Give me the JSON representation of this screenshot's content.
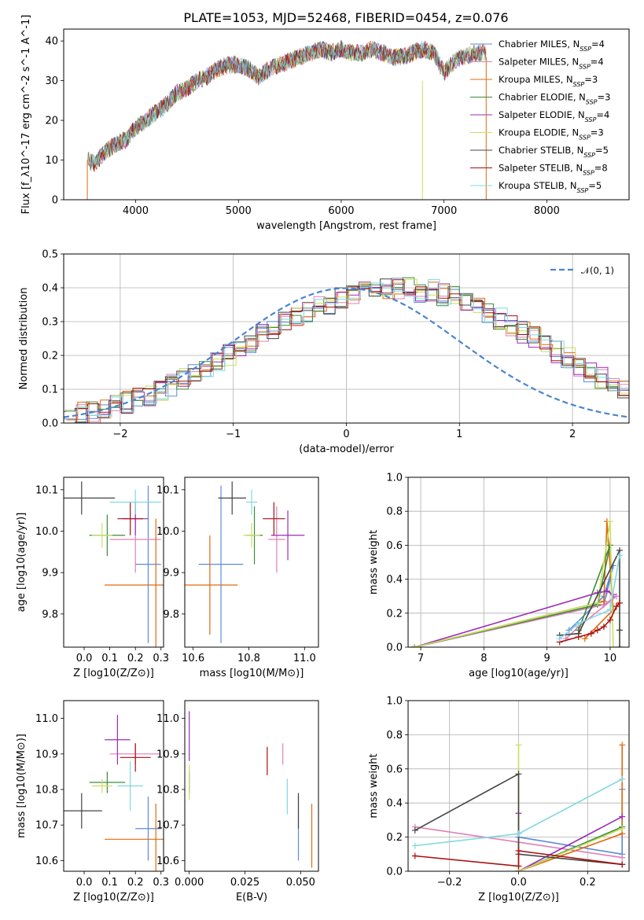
{
  "title": "PLATE=1053, MJD=52468, FIBERID=0454, z=0.076",
  "colors": {
    "Chabrier MILES": "#5b8bd9",
    "Salpeter MILES": "#e07fb8",
    "Kroupa MILES": "#e06a10",
    "Chabrier ELODIE": "#3f8a3a",
    "Salpeter ELODIE": "#9b2bb5",
    "Kroupa ELODIE": "#c8e060",
    "Chabrier STELIB": "#444444",
    "Salpeter STELIB": "#a81010",
    "Kroupa STELIB": "#80d8e0"
  },
  "chart_data": [
    {
      "type": "line",
      "title": "PLATE=1053, MJD=52468, FIBERID=0454, z=0.076",
      "xlabel": "wavelength [Angstrom, rest frame]",
      "ylabel": "Flux [f_λ10^-17 erg cm^-2 s^-1 A^-1]",
      "xlim": [
        3300,
        8800
      ],
      "ylim": [
        0,
        43
      ],
      "xticks": [
        4000,
        5000,
        6000,
        7000,
        8000
      ],
      "yticks": [
        0,
        10,
        20,
        30,
        40
      ],
      "grid": false,
      "legend": "top-right",
      "x": [
        3530,
        3600,
        3700,
        3800,
        3900,
        4000,
        4100,
        4200,
        4300,
        4400,
        4500,
        4600,
        4700,
        4800,
        4900,
        5000,
        5100,
        5200,
        5300,
        5400,
        5500,
        5600,
        5700,
        5800,
        5900,
        6000,
        6100,
        6200,
        6300,
        6400,
        6500,
        6600,
        6700,
        6800,
        6900,
        7000,
        7100,
        7200,
        7300,
        7400
      ],
      "continuum": [
        10,
        9,
        12,
        14,
        15,
        18,
        20,
        22,
        24,
        27,
        28,
        30,
        31,
        33,
        34,
        34,
        33,
        31,
        33,
        34,
        35,
        36,
        37,
        38,
        37,
        38,
        37,
        37,
        38,
        37,
        36,
        36,
        37,
        38,
        37,
        32,
        35,
        36,
        37,
        37
      ],
      "series": [
        {
          "name": "Chabrier MILES",
          "nssp": "4"
        },
        {
          "name": "Salpeter MILES",
          "nssp": "4"
        },
        {
          "name": "Kroupa MILES",
          "nssp": "3"
        },
        {
          "name": "Chabrier ELODIE",
          "nssp": "3"
        },
        {
          "name": "Salpeter ELODIE",
          "nssp": "4"
        },
        {
          "name": "Kroupa ELODIE",
          "nssp": "3"
        },
        {
          "name": "Chabrier STELIB",
          "nssp": "5"
        },
        {
          "name": "Salpeter STELIB",
          "nssp": "8"
        },
        {
          "name": "Kroupa STELIB",
          "nssp": "5"
        }
      ]
    },
    {
      "type": "bar",
      "xlabel": "(data-model)/error",
      "ylabel": "Normed distribution",
      "xlim": [
        -2.5,
        2.5
      ],
      "ylim": [
        0,
        0.5
      ],
      "xticks": [
        -2,
        -1,
        0,
        1,
        2
      ],
      "yticks": [
        0.0,
        0.1,
        0.2,
        0.3,
        0.4,
        0.5
      ],
      "grid": true,
      "legend": "top-right",
      "reference": "𝒩(0, 1)",
      "bin_width": 0.1,
      "bin_start": -2.5,
      "approx_values": [
        0.02,
        0.03,
        0.03,
        0.04,
        0.05,
        0.06,
        0.07,
        0.08,
        0.09,
        0.11,
        0.13,
        0.15,
        0.16,
        0.18,
        0.2,
        0.22,
        0.24,
        0.26,
        0.28,
        0.3,
        0.31,
        0.33,
        0.34,
        0.35,
        0.37,
        0.38,
        0.39,
        0.39,
        0.4,
        0.4,
        0.4,
        0.39,
        0.39,
        0.38,
        0.37,
        0.35,
        0.34,
        0.33,
        0.31,
        0.29,
        0.27,
        0.25,
        0.23,
        0.21,
        0.19,
        0.17,
        0.15,
        0.13,
        0.11,
        0.1
      ]
    },
    {
      "type": "scatter",
      "xlabel": "Z [log10(Z/Z⊙)]",
      "ylabel": "age [log10(age/yr)]",
      "xlim": [
        -0.08,
        0.31
      ],
      "ylim": [
        9.72,
        10.13
      ],
      "xticks": [
        0.0,
        0.1,
        0.2,
        0.3
      ],
      "yticks": [
        9.8,
        9.9,
        10.0,
        10.1
      ],
      "points": [
        {
          "name": "Chabrier MILES",
          "x": 0.25,
          "y": 9.92,
          "xerr": 0.05,
          "yerr": 0.19
        },
        {
          "name": "Salpeter MILES",
          "x": 0.2,
          "y": 9.98,
          "xerr": 0.1,
          "yerr": 0.08
        },
        {
          "name": "Kroupa MILES",
          "x": 0.28,
          "y": 9.87,
          "xerr": 0.2,
          "yerr": 0.16
        },
        {
          "name": "Chabrier ELODIE",
          "x": 0.09,
          "y": 9.99,
          "xerr": 0.07,
          "yerr": 0.05
        },
        {
          "name": "Salpeter ELODIE",
          "x": 0.2,
          "y": 10.03,
          "xerr": 0.05,
          "yerr": 0.04
        },
        {
          "name": "Kroupa ELODIE",
          "x": 0.07,
          "y": 9.99,
          "xerr": 0.04,
          "yerr": 0.03
        },
        {
          "name": "Chabrier STELIB",
          "x": -0.01,
          "y": 10.08,
          "xerr": 0.13,
          "yerr": 0.04
        },
        {
          "name": "Salpeter STELIB",
          "x": 0.18,
          "y": 10.03,
          "xerr": 0.05,
          "yerr": 0.04
        },
        {
          "name": "Kroupa STELIB",
          "x": 0.2,
          "y": 10.07,
          "xerr": 0.1,
          "yerr": 0.03
        }
      ]
    },
    {
      "type": "scatter",
      "xlabel": "mass [log10(M/M⊙)]",
      "ylabel": "",
      "xlim": [
        10.57,
        11.05
      ],
      "ylim": [
        9.72,
        10.13
      ],
      "xticks": [
        10.6,
        10.8,
        11.0
      ],
      "yticks": [
        9.8,
        9.9,
        10.0,
        10.1
      ],
      "points": [
        {
          "name": "Chabrier MILES",
          "x": 10.7,
          "y": 9.92,
          "xerr": 0.08,
          "yerr": 0.19
        },
        {
          "name": "Salpeter MILES",
          "x": 10.9,
          "y": 9.98,
          "xerr": 0.03,
          "yerr": 0.08
        },
        {
          "name": "Kroupa MILES",
          "x": 10.66,
          "y": 9.87,
          "xerr": 0.1,
          "yerr": 0.12
        },
        {
          "name": "Chabrier ELODIE",
          "x": 10.82,
          "y": 9.99,
          "xerr": 0.03,
          "yerr": 0.07
        },
        {
          "name": "Salpeter ELODIE",
          "x": 10.94,
          "y": 9.99,
          "xerr": 0.06,
          "yerr": 0.06
        },
        {
          "name": "Kroupa ELODIE",
          "x": 10.81,
          "y": 9.99,
          "xerr": 0.03,
          "yerr": 0.03
        },
        {
          "name": "Chabrier STELIB",
          "x": 10.74,
          "y": 10.08,
          "xerr": 0.05,
          "yerr": 0.04
        },
        {
          "name": "Salpeter STELIB",
          "x": 10.89,
          "y": 10.03,
          "xerr": 0.04,
          "yerr": 0.04
        },
        {
          "name": "Kroupa STELIB",
          "x": 10.81,
          "y": 10.07,
          "xerr": 0.02,
          "yerr": 0.03
        }
      ]
    },
    {
      "type": "line",
      "xlabel": "age [log10(age/yr)]",
      "ylabel": "mass weight",
      "xlim": [
        6.8,
        10.3
      ],
      "ylim": [
        0,
        1.0
      ],
      "xticks": [
        7,
        8,
        9,
        10
      ],
      "yticks": [
        0.0,
        0.2,
        0.4,
        0.6,
        0.8,
        1.0
      ],
      "grid": true,
      "series": [
        {
          "name": "Chabrier MILES",
          "x": [
            6.9,
            9.9,
            10.05,
            9.9,
            9.35
          ],
          "y": [
            0.0,
            0.25,
            0.48,
            0.3,
            0.1
          ]
        },
        {
          "name": "Salpeter MILES",
          "x": [
            6.9,
            9.9,
            10.1,
            9.5,
            9.3
          ],
          "y": [
            0.0,
            0.25,
            0.3,
            0.12,
            0.05
          ]
        },
        {
          "name": "Kroupa MILES",
          "x": [
            6.9,
            9.9,
            9.95,
            10.05,
            9.6
          ],
          "y": [
            0.0,
            0.27,
            0.74,
            0.22,
            0.05
          ]
        },
        {
          "name": "Chabrier ELODIE",
          "x": [
            6.9,
            9.8,
            10.0,
            9.5
          ],
          "y": [
            0.0,
            0.25,
            0.6,
            0.1
          ]
        },
        {
          "name": "Salpeter ELODIE",
          "x": [
            6.9,
            9.8,
            9.95,
            10.05
          ],
          "y": [
            0.0,
            0.32,
            0.33,
            0.31
          ]
        },
        {
          "name": "Kroupa ELODIE",
          "x": [
            6.9,
            9.8,
            10.0,
            10.05
          ],
          "y": [
            0.0,
            0.26,
            0.74,
            0.0
          ]
        },
        {
          "name": "Chabrier STELIB",
          "x": [
            9.2,
            9.5,
            10.15,
            10.15,
            10.15
          ],
          "y": [
            0.07,
            0.08,
            0.57,
            0.1,
            0.0
          ]
        },
        {
          "name": "Salpeter STELIB",
          "x": [
            9.2,
            9.5,
            9.7,
            9.8,
            9.9,
            10.0,
            10.1,
            10.15
          ],
          "y": [
            0.03,
            0.06,
            0.08,
            0.1,
            0.12,
            0.16,
            0.24,
            0.26
          ]
        },
        {
          "name": "Kroupa STELIB",
          "x": [
            9.2,
            9.5,
            10.0,
            10.15
          ],
          "y": [
            0.05,
            0.14,
            0.22,
            0.54
          ]
        }
      ]
    },
    {
      "type": "scatter",
      "xlabel": "Z [log10(Z/Z⊙)]",
      "ylabel": "mass [log10(M/M⊙)]",
      "xlim": [
        -0.08,
        0.31
      ],
      "ylim": [
        10.57,
        11.05
      ],
      "xticks": [
        0.0,
        0.1,
        0.2,
        0.3
      ],
      "yticks": [
        10.6,
        10.7,
        10.8,
        10.9,
        11.0
      ],
      "points": [
        {
          "name": "Chabrier MILES",
          "x": 0.25,
          "y": 10.69,
          "xerr": 0.05,
          "yerr": 0.09
        },
        {
          "name": "Salpeter MILES",
          "x": 0.2,
          "y": 10.9,
          "xerr": 0.1,
          "yerr": 0.03
        },
        {
          "name": "Kroupa MILES",
          "x": 0.28,
          "y": 10.66,
          "xerr": 0.2,
          "yerr": 0.1
        },
        {
          "name": "Chabrier ELODIE",
          "x": 0.09,
          "y": 10.82,
          "xerr": 0.07,
          "yerr": 0.03
        },
        {
          "name": "Salpeter ELODIE",
          "x": 0.13,
          "y": 10.94,
          "xerr": 0.05,
          "yerr": 0.07
        },
        {
          "name": "Kroupa ELODIE",
          "x": 0.07,
          "y": 10.81,
          "xerr": 0.04,
          "yerr": 0.02
        },
        {
          "name": "Chabrier STELIB",
          "x": -0.01,
          "y": 10.74,
          "xerr": 0.08,
          "yerr": 0.05
        },
        {
          "name": "Salpeter STELIB",
          "x": 0.2,
          "y": 10.89,
          "xerr": 0.06,
          "yerr": 0.04
        },
        {
          "name": "Kroupa STELIB",
          "x": 0.18,
          "y": 10.81,
          "xerr": 0.05,
          "yerr": 0.07
        }
      ]
    },
    {
      "type": "scatter",
      "xlabel": "E(B-V)",
      "ylabel": "",
      "xlim": [
        -0.002,
        0.058
      ],
      "ylim": [
        10.57,
        11.05
      ],
      "xticks": [
        0.0,
        0.025,
        0.05
      ],
      "yticks": [
        10.6,
        10.7,
        10.8,
        10.9,
        11.0
      ],
      "points": [
        {
          "name": "Chabrier MILES",
          "x": 0.049,
          "y": 10.69,
          "xerr": 0.0,
          "yerr": 0.09
        },
        {
          "name": "Salpeter MILES",
          "x": 0.042,
          "y": 10.9,
          "xerr": 0.0,
          "yerr": 0.03
        },
        {
          "name": "Kroupa MILES",
          "x": 0.055,
          "y": 10.67,
          "xerr": 0.0,
          "yerr": 0.09
        },
        {
          "name": "Chabrier ELODIE",
          "x": 0.0,
          "y": 10.82,
          "xerr": 0.0,
          "yerr": 0.03
        },
        {
          "name": "Salpeter ELODIE",
          "x": 0.0,
          "y": 10.95,
          "xerr": 0.0,
          "yerr": 0.07
        },
        {
          "name": "Kroupa ELODIE",
          "x": 0.0,
          "y": 10.82,
          "xerr": 0.0,
          "yerr": 0.05
        },
        {
          "name": "Chabrier STELIB",
          "x": 0.049,
          "y": 10.74,
          "xerr": 0.0,
          "yerr": 0.05
        },
        {
          "name": "Salpeter STELIB",
          "x": 0.035,
          "y": 10.88,
          "xerr": 0.0,
          "yerr": 0.04
        },
        {
          "name": "Kroupa STELIB",
          "x": 0.044,
          "y": 10.78,
          "xerr": 0.0,
          "yerr": 0.05
        }
      ]
    },
    {
      "type": "line",
      "xlabel": "Z [log10(Z/Z⊙)]",
      "ylabel": "mass weight",
      "xlim": [
        -0.32,
        0.32
      ],
      "ylim": [
        0,
        1.0
      ],
      "xticks": [
        -0.2,
        0.0,
        0.2
      ],
      "yticks": [
        0.0,
        0.2,
        0.4,
        0.6,
        0.8,
        1.0
      ],
      "grid": true,
      "series": [
        {
          "name": "Chabrier MILES",
          "x": [
            0.0,
            0.3,
            0.3
          ],
          "y": [
            0.2,
            0.1,
            0.48
          ]
        },
        {
          "name": "Salpeter MILES",
          "x": [
            -0.3,
            0.0,
            0.3
          ],
          "y": [
            0.26,
            0.17,
            0.08
          ]
        },
        {
          "name": "Kroupa MILES",
          "x": [
            0.0,
            0.3,
            0.3
          ],
          "y": [
            0.0,
            0.22,
            0.74
          ]
        },
        {
          "name": "Chabrier ELODIE",
          "x": [
            0.0,
            0.3
          ],
          "y": [
            0.0,
            0.26
          ]
        },
        {
          "name": "Salpeter ELODIE",
          "x": [
            0.0,
            0.0,
            0.3
          ],
          "y": [
            0.34,
            0.0,
            0.32
          ]
        },
        {
          "name": "Kroupa ELODIE",
          "x": [
            0.0,
            0.0,
            0.3
          ],
          "y": [
            0.74,
            0.0,
            0.25
          ]
        },
        {
          "name": "Chabrier STELIB",
          "x": [
            -0.3,
            0.0,
            0.0,
            0.3
          ],
          "y": [
            0.24,
            0.57,
            0.1,
            0.04
          ]
        },
        {
          "name": "Salpeter STELIB",
          "x": [
            -0.3,
            0.0,
            0.0,
            0.3
          ],
          "y": [
            0.09,
            0.03,
            0.12,
            0.04
          ]
        },
        {
          "name": "Kroupa STELIB",
          "x": [
            -0.3,
            0.0,
            0.3
          ],
          "y": [
            0.15,
            0.22,
            0.54
          ]
        }
      ]
    }
  ]
}
